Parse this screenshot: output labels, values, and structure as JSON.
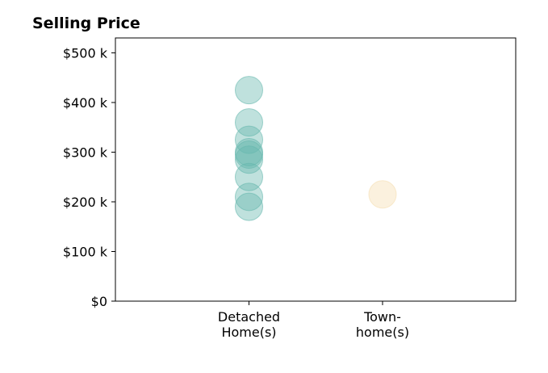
{
  "chart_data": {
    "type": "scatter",
    "title": "Selling Price",
    "xlabel": "",
    "ylabel": "",
    "categories": [
      [
        "Detached",
        "Home(s)"
      ],
      [
        "Town-",
        "home(s)"
      ]
    ],
    "y_ticks": [
      {
        "value": 0,
        "label": "$0"
      },
      {
        "value": 100000,
        "label": "$100 k"
      },
      {
        "value": 200000,
        "label": "$200 k"
      },
      {
        "value": 300000,
        "label": "$300 k"
      },
      {
        "value": 400000,
        "label": "$400 k"
      },
      {
        "value": 500000,
        "label": "$500 k"
      }
    ],
    "ylim": [
      0,
      530000
    ],
    "grid": false,
    "legend": "none",
    "series": [
      {
        "category": 0,
        "color": "#66b8ad",
        "values": [
          425000,
          360000,
          325000,
          300000,
          295000,
          285000,
          250000,
          210000,
          190000
        ]
      },
      {
        "category": 1,
        "color": "#f5deb0",
        "values": [
          215000
        ]
      }
    ]
  }
}
